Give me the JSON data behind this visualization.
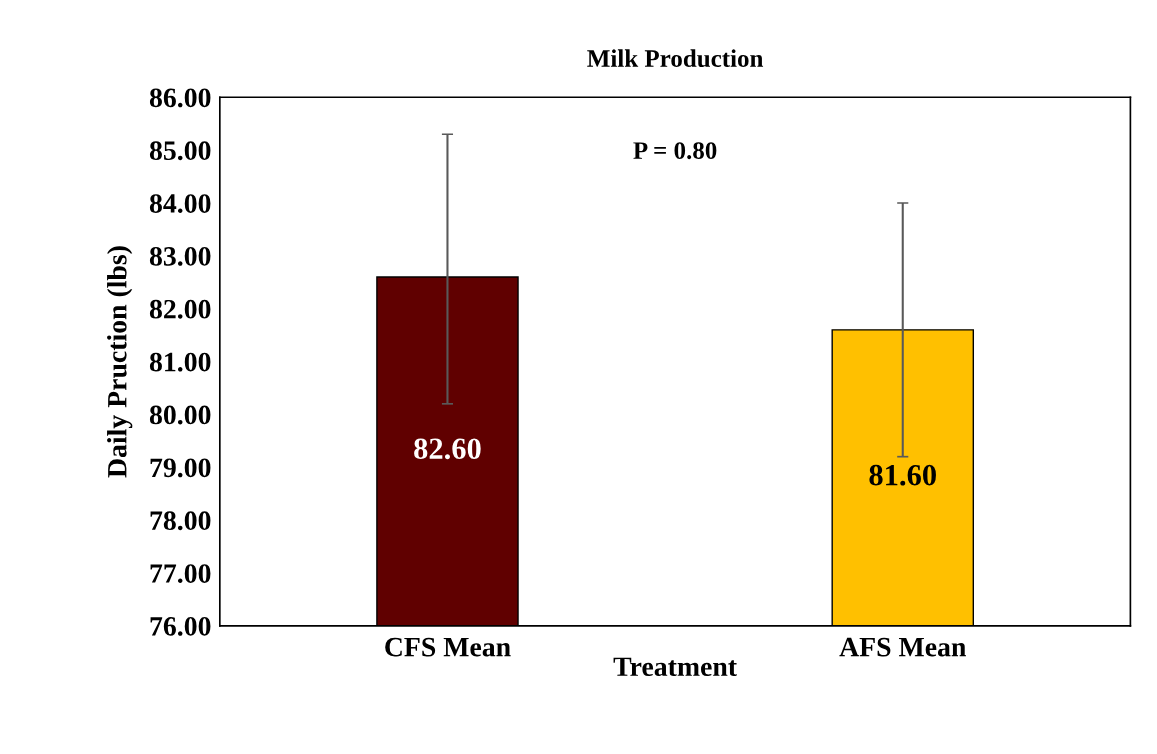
{
  "chart_data": {
    "type": "bar",
    "title": "Milk Production",
    "xlabel": "Treatment",
    "ylabel": "Daily Pruction (lbs)",
    "categories": [
      "CFS Mean",
      "AFS Mean"
    ],
    "values": [
      82.6,
      81.6
    ],
    "colors": [
      "#600000",
      "#ffc000"
    ],
    "errors": [
      [
        80.2,
        85.3
      ],
      [
        79.2,
        84.0
      ]
    ],
    "value_labels": [
      "82.60",
      "81.60"
    ],
    "ylim": [
      76,
      86
    ],
    "yticks": [
      {
        "value": 76,
        "label": "76.00"
      },
      {
        "value": 77,
        "label": "77.00"
      },
      {
        "value": 78,
        "label": "78.00"
      },
      {
        "value": 79,
        "label": "79.00"
      },
      {
        "value": 80,
        "label": "80.00"
      },
      {
        "value": 81,
        "label": "81.00"
      },
      {
        "value": 82,
        "label": "82.00"
      },
      {
        "value": 83,
        "label": "83.00"
      },
      {
        "value": 84,
        "label": "84.00"
      },
      {
        "value": 85,
        "label": "85.00"
      },
      {
        "value": 86,
        "label": "86.00"
      }
    ],
    "annotations": [
      "P = 0.80"
    ],
    "grid": false,
    "legend": false
  }
}
